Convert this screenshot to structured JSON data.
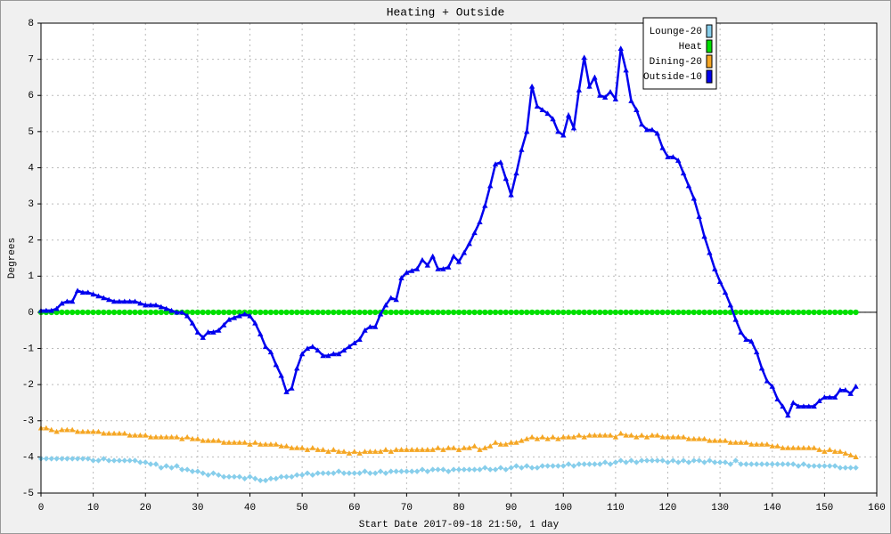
{
  "chart_data": {
    "type": "line",
    "title": "Heating + Outside",
    "xlabel": "Start Date 2017-09-18 21:50, 1 day",
    "ylabel": "Degrees",
    "xlim": [
      0,
      160
    ],
    "xticks": [
      0,
      10,
      20,
      30,
      40,
      50,
      60,
      70,
      80,
      90,
      100,
      110,
      120,
      130,
      140,
      150,
      160
    ],
    "ylim": [
      -5,
      8
    ],
    "yticks": [
      -5,
      -4,
      -3,
      -2,
      -1,
      0,
      1,
      2,
      3,
      4,
      5,
      6,
      7,
      8
    ],
    "grid": true,
    "legend": "upper right",
    "x": [
      0,
      1,
      2,
      3,
      4,
      5,
      6,
      7,
      8,
      9,
      10,
      11,
      12,
      13,
      14,
      15,
      16,
      17,
      18,
      19,
      20,
      21,
      22,
      23,
      24,
      25,
      26,
      27,
      28,
      29,
      30,
      31,
      32,
      33,
      34,
      35,
      36,
      37,
      38,
      39,
      40,
      41,
      42,
      43,
      44,
      45,
      46,
      47,
      48,
      49,
      50,
      51,
      52,
      53,
      54,
      55,
      56,
      57,
      58,
      59,
      60,
      61,
      62,
      63,
      64,
      65,
      66,
      67,
      68,
      69,
      70,
      71,
      72,
      73,
      74,
      75,
      76,
      77,
      78,
      79,
      80,
      81,
      82,
      83,
      84,
      85,
      86,
      87,
      88,
      89,
      90,
      91,
      92,
      93,
      94,
      95,
      96,
      97,
      98,
      99,
      100,
      101,
      102,
      103,
      104,
      105,
      106,
      107,
      108,
      109,
      110,
      111,
      112,
      113,
      114,
      115,
      116,
      117,
      118,
      119,
      120,
      121,
      122,
      123,
      124,
      125,
      126,
      127,
      128,
      129,
      130,
      131,
      132,
      133,
      134,
      135,
      136,
      137,
      138,
      139,
      140,
      141,
      142,
      143,
      144,
      145,
      146,
      147,
      148,
      149,
      150,
      151,
      152,
      153,
      154,
      155,
      156
    ],
    "series": [
      {
        "name": "Lounge-20",
        "color": "#87ceeb",
        "marker": "diamond",
        "values": [
          -4.05,
          -4.05,
          -4.05,
          -4.05,
          -4.05,
          -4.05,
          -4.05,
          -4.05,
          -4.05,
          -4.05,
          -4.1,
          -4.1,
          -4.05,
          -4.1,
          -4.1,
          -4.1,
          -4.1,
          -4.1,
          -4.1,
          -4.15,
          -4.15,
          -4.2,
          -4.2,
          -4.3,
          -4.25,
          -4.3,
          -4.25,
          -4.35,
          -4.35,
          -4.4,
          -4.4,
          -4.45,
          -4.5,
          -4.45,
          -4.5,
          -4.55,
          -4.55,
          -4.55,
          -4.55,
          -4.6,
          -4.55,
          -4.6,
          -4.65,
          -4.65,
          -4.6,
          -4.6,
          -4.55,
          -4.55,
          -4.55,
          -4.5,
          -4.5,
          -4.45,
          -4.5,
          -4.45,
          -4.45,
          -4.45,
          -4.45,
          -4.4,
          -4.45,
          -4.45,
          -4.45,
          -4.45,
          -4.4,
          -4.45,
          -4.45,
          -4.4,
          -4.45,
          -4.4,
          -4.4,
          -4.4,
          -4.4,
          -4.4,
          -4.4,
          -4.35,
          -4.4,
          -4.35,
          -4.35,
          -4.35,
          -4.4,
          -4.35,
          -4.35,
          -4.35,
          -4.35,
          -4.35,
          -4.35,
          -4.3,
          -4.35,
          -4.35,
          -4.3,
          -4.35,
          -4.3,
          -4.25,
          -4.3,
          -4.25,
          -4.3,
          -4.3,
          -4.25,
          -4.25,
          -4.25,
          -4.25,
          -4.25,
          -4.2,
          -4.25,
          -4.2,
          -4.2,
          -4.2,
          -4.2,
          -4.2,
          -4.15,
          -4.2,
          -4.15,
          -4.1,
          -4.15,
          -4.1,
          -4.15,
          -4.1,
          -4.1,
          -4.1,
          -4.1,
          -4.1,
          -4.15,
          -4.1,
          -4.15,
          -4.1,
          -4.15,
          -4.1,
          -4.1,
          -4.15,
          -4.1,
          -4.15,
          -4.15,
          -4.15,
          -4.2,
          -4.1,
          -4.2,
          -4.2,
          -4.2,
          -4.2,
          -4.2,
          -4.2,
          -4.2,
          -4.2,
          -4.2,
          -4.2,
          -4.2,
          -4.25,
          -4.2,
          -4.25,
          -4.25,
          -4.25,
          -4.25,
          -4.25,
          -4.25,
          -4.3,
          -4.3,
          -4.3,
          -4.3
        ]
      },
      {
        "name": "Heat",
        "color": "#00e000",
        "marker": "circle",
        "values": [
          0,
          0,
          0,
          0,
          0,
          0,
          0,
          0,
          0,
          0,
          0,
          0,
          0,
          0,
          0,
          0,
          0,
          0,
          0,
          0,
          0,
          0,
          0,
          0,
          0,
          0,
          0,
          0,
          0,
          0,
          0,
          0,
          0,
          0,
          0,
          0,
          0,
          0,
          0,
          0,
          0,
          0,
          0,
          0,
          0,
          0,
          0,
          0,
          0,
          0,
          0,
          0,
          0,
          0,
          0,
          0,
          0,
          0,
          0,
          0,
          0,
          0,
          0,
          0,
          0,
          0,
          0,
          0,
          0,
          0,
          0,
          0,
          0,
          0,
          0,
          0,
          0,
          0,
          0,
          0,
          0,
          0,
          0,
          0,
          0,
          0,
          0,
          0,
          0,
          0,
          0,
          0,
          0,
          0,
          0,
          0,
          0,
          0,
          0,
          0,
          0,
          0,
          0,
          0,
          0,
          0,
          0,
          0,
          0,
          0,
          0,
          0,
          0,
          0,
          0,
          0,
          0,
          0,
          0,
          0,
          0,
          0,
          0,
          0,
          0,
          0,
          0,
          0,
          0,
          0,
          0,
          0,
          0,
          0,
          0,
          0,
          0,
          0,
          0,
          0,
          0,
          0,
          0,
          0,
          0,
          0,
          0,
          0,
          0,
          0,
          0,
          0,
          0,
          0,
          0,
          0,
          0
        ]
      },
      {
        "name": "Dining-20",
        "color": "#f5a623",
        "marker": "triangle",
        "values": [
          -3.2,
          -3.2,
          -3.25,
          -3.3,
          -3.25,
          -3.25,
          -3.25,
          -3.3,
          -3.3,
          -3.3,
          -3.3,
          -3.3,
          -3.35,
          -3.35,
          -3.35,
          -3.35,
          -3.35,
          -3.4,
          -3.4,
          -3.4,
          -3.4,
          -3.45,
          -3.45,
          -3.45,
          -3.45,
          -3.45,
          -3.45,
          -3.5,
          -3.45,
          -3.5,
          -3.5,
          -3.55,
          -3.55,
          -3.55,
          -3.55,
          -3.6,
          -3.6,
          -3.6,
          -3.6,
          -3.6,
          -3.65,
          -3.6,
          -3.65,
          -3.65,
          -3.65,
          -3.65,
          -3.7,
          -3.7,
          -3.75,
          -3.75,
          -3.75,
          -3.8,
          -3.75,
          -3.8,
          -3.8,
          -3.85,
          -3.8,
          -3.85,
          -3.85,
          -3.9,
          -3.85,
          -3.9,
          -3.85,
          -3.85,
          -3.85,
          -3.85,
          -3.8,
          -3.85,
          -3.8,
          -3.8,
          -3.8,
          -3.8,
          -3.8,
          -3.8,
          -3.8,
          -3.8,
          -3.75,
          -3.8,
          -3.75,
          -3.75,
          -3.8,
          -3.75,
          -3.75,
          -3.7,
          -3.8,
          -3.75,
          -3.7,
          -3.6,
          -3.65,
          -3.65,
          -3.6,
          -3.6,
          -3.55,
          -3.5,
          -3.45,
          -3.5,
          -3.45,
          -3.5,
          -3.45,
          -3.5,
          -3.45,
          -3.45,
          -3.45,
          -3.4,
          -3.45,
          -3.4,
          -3.4,
          -3.4,
          -3.4,
          -3.4,
          -3.45,
          -3.35,
          -3.4,
          -3.4,
          -3.45,
          -3.4,
          -3.45,
          -3.4,
          -3.4,
          -3.45,
          -3.45,
          -3.45,
          -3.45,
          -3.45,
          -3.5,
          -3.5,
          -3.5,
          -3.5,
          -3.55,
          -3.55,
          -3.55,
          -3.55,
          -3.6,
          -3.6,
          -3.6,
          -3.6,
          -3.65,
          -3.65,
          -3.65,
          -3.65,
          -3.7,
          -3.7,
          -3.75,
          -3.75,
          -3.75,
          -3.75,
          -3.75,
          -3.75,
          -3.75,
          -3.8,
          -3.85,
          -3.8,
          -3.85,
          -3.85,
          -3.9,
          -3.95,
          -4.0
        ]
      },
      {
        "name": "Outside-10",
        "color": "#0000ee",
        "marker": "triangle",
        "values": [
          0.05,
          0.05,
          0.05,
          0.1,
          0.25,
          0.3,
          0.3,
          0.6,
          0.55,
          0.55,
          0.5,
          0.45,
          0.4,
          0.35,
          0.3,
          0.3,
          0.3,
          0.3,
          0.3,
          0.25,
          0.2,
          0.2,
          0.2,
          0.15,
          0.1,
          0.05,
          0,
          0,
          -0.1,
          -0.3,
          -0.55,
          -0.7,
          -0.55,
          -0.55,
          -0.5,
          -0.35,
          -0.2,
          -0.15,
          -0.1,
          -0.05,
          -0.1,
          -0.3,
          -0.6,
          -0.95,
          -1.1,
          -1.45,
          -1.75,
          -2.2,
          -2.1,
          -1.55,
          -1.15,
          -1.0,
          -0.95,
          -1.05,
          -1.2,
          -1.2,
          -1.15,
          -1.15,
          -1.05,
          -0.95,
          -0.85,
          -0.75,
          -0.5,
          -0.4,
          -0.4,
          -0.05,
          0.2,
          0.4,
          0.35,
          0.95,
          1.1,
          1.15,
          1.2,
          1.45,
          1.3,
          1.55,
          1.2,
          1.2,
          1.25,
          1.55,
          1.4,
          1.65,
          1.9,
          2.2,
          2.5,
          2.95,
          3.5,
          4.1,
          4.15,
          3.7,
          3.25,
          3.85,
          4.5,
          5.0,
          6.25,
          5.7,
          5.6,
          5.5,
          5.35,
          5.0,
          4.9,
          5.45,
          5.1,
          6.15,
          7.05,
          6.25,
          6.5,
          6.0,
          5.95,
          6.1,
          5.9,
          7.3,
          6.7,
          5.85,
          5.6,
          5.2,
          5.05,
          5.05,
          4.95,
          4.55,
          4.3,
          4.3,
          4.2,
          3.85,
          3.5,
          3.15,
          2.65,
          2.1,
          1.65,
          1.2,
          0.85,
          0.55,
          0.2,
          -0.2,
          -0.55,
          -0.75,
          -0.8,
          -1.1,
          -1.55,
          -1.9,
          -2.05,
          -2.4,
          -2.6,
          -2.85,
          -2.5,
          -2.6,
          -2.6,
          -2.6,
          -2.6,
          -2.45,
          -2.35,
          -2.35,
          -2.35,
          -2.15,
          -2.15,
          -2.25,
          -2.05
        ]
      }
    ]
  }
}
